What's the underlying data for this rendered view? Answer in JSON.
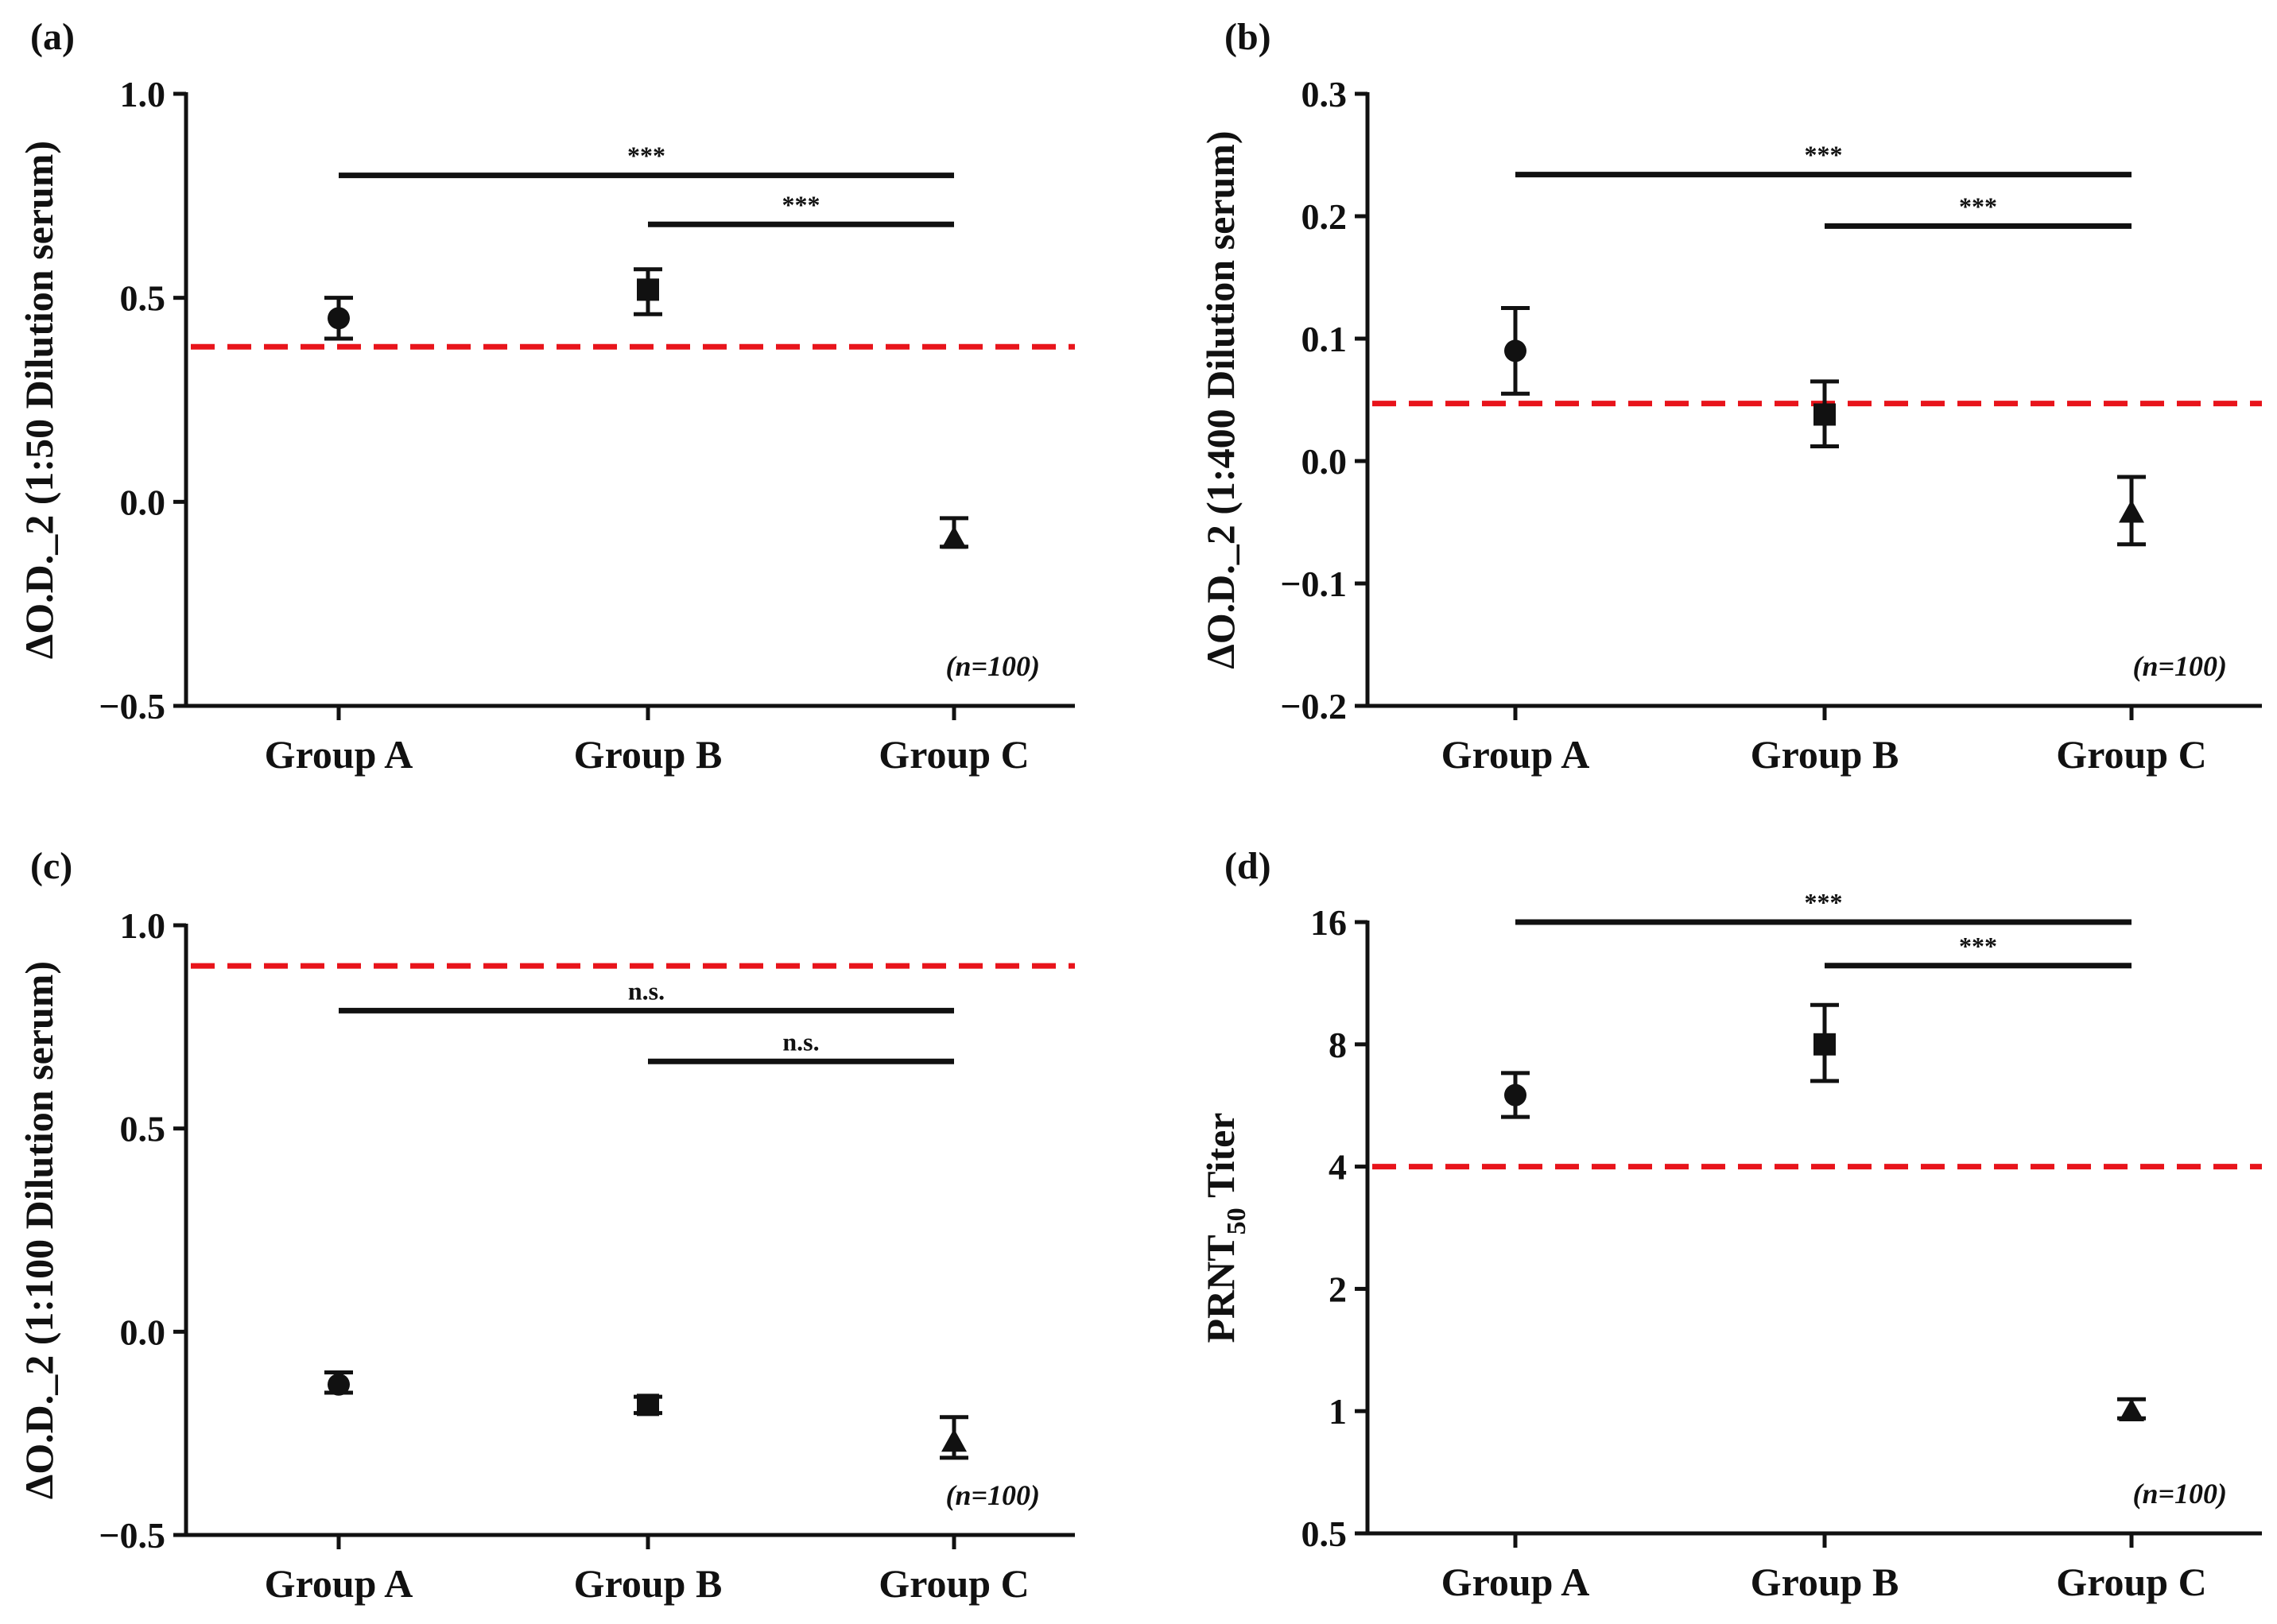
{
  "colors": {
    "ink": "#111111",
    "threshold": "#e8141b",
    "background": "#ffffff"
  },
  "chart_data": [
    {
      "panel": "(a)",
      "type": "scatter",
      "scale": "linear",
      "ylabel": "ΔO.D._2 (1:50 Dilution serum)",
      "ylim": [
        -0.5,
        1.0
      ],
      "yticks": [
        -0.5,
        0.0,
        0.5,
        1.0
      ],
      "ytick_labels": [
        "−0.5",
        "0.0",
        "0.5",
        "1.0"
      ],
      "categories": [
        "Group A",
        "Group B",
        "Group C"
      ],
      "markers": [
        "circle",
        "square",
        "triangle"
      ],
      "values": [
        0.45,
        0.52,
        -0.09
      ],
      "err_low": [
        0.4,
        0.46,
        -0.11
      ],
      "err_high": [
        0.5,
        0.57,
        -0.04
      ],
      "threshold": 0.38,
      "brackets": [
        {
          "from": "Group A",
          "to": "Group C",
          "y": 0.8,
          "label": "***"
        },
        {
          "from": "Group B",
          "to": "Group C",
          "y": 0.68,
          "label": "***"
        }
      ],
      "note": "(n=100)"
    },
    {
      "panel": "(b)",
      "type": "scatter",
      "scale": "linear",
      "ylabel": "ΔO.D._2 (1:400 Dilution serum)",
      "ylim": [
        -0.2,
        0.3
      ],
      "yticks": [
        -0.2,
        -0.1,
        0.0,
        0.1,
        0.2,
        0.3
      ],
      "ytick_labels": [
        "−0.2",
        "−0.1",
        "0.0",
        "0.1",
        "0.2",
        "0.3"
      ],
      "categories": [
        "Group A",
        "Group B",
        "Group C"
      ],
      "markers": [
        "circle",
        "square",
        "triangle"
      ],
      "values": [
        0.09,
        0.038,
        -0.042
      ],
      "err_low": [
        0.055,
        0.012,
        -0.068
      ],
      "err_high": [
        0.125,
        0.065,
        -0.013
      ],
      "threshold": 0.047,
      "brackets": [
        {
          "from": "Group A",
          "to": "Group C",
          "y": 0.234,
          "label": "***"
        },
        {
          "from": "Group B",
          "to": "Group C",
          "y": 0.192,
          "label": "***"
        }
      ],
      "note": "(n=100)"
    },
    {
      "panel": "(c)",
      "type": "scatter",
      "scale": "linear",
      "ylabel": "ΔO.D._2 (1:100 Dilution serum)",
      "ylim": [
        -0.5,
        1.0
      ],
      "yticks": [
        -0.5,
        0.0,
        0.5,
        1.0
      ],
      "ytick_labels": [
        "−0.5",
        "0.0",
        "0.5",
        "1.0"
      ],
      "categories": [
        "Group A",
        "Group B",
        "Group C"
      ],
      "markers": [
        "circle",
        "square",
        "triangle"
      ],
      "values": [
        -0.13,
        -0.18,
        -0.27
      ],
      "err_low": [
        -0.15,
        -0.2,
        -0.31
      ],
      "err_high": [
        -0.1,
        -0.16,
        -0.21
      ],
      "threshold": 0.9,
      "brackets": [
        {
          "from": "Group A",
          "to": "Group C",
          "y": 0.79,
          "label": "n.s."
        },
        {
          "from": "Group B",
          "to": "Group C",
          "y": 0.665,
          "label": "n.s."
        }
      ],
      "note": "(n=100)"
    },
    {
      "panel": "(d)",
      "type": "scatter",
      "scale": "log2",
      "ylabel_main": "PRNT",
      "ylabel_sub": "50",
      "ylabel_tail": " Titer",
      "ylim": [
        0.5,
        16
      ],
      "yticks": [
        0.5,
        1,
        2,
        4,
        8,
        16
      ],
      "ytick_labels": [
        "0.5",
        "1",
        "2",
        "4",
        "8",
        "16"
      ],
      "categories": [
        "Group A",
        "Group B",
        "Group C"
      ],
      "markers": [
        "circle",
        "square",
        "triangle"
      ],
      "values": [
        6.0,
        8.0,
        1.0
      ],
      "err_low": [
        5.3,
        6.5,
        0.96
      ],
      "err_high": [
        6.8,
        10.0,
        1.07
      ],
      "threshold": 4,
      "brackets": [
        {
          "from": "Group A",
          "to": "Group C",
          "y": 16,
          "label": "***"
        },
        {
          "from": "Group B",
          "to": "Group C",
          "y": 12.5,
          "label": "***"
        }
      ],
      "note": "(n=100)"
    }
  ]
}
